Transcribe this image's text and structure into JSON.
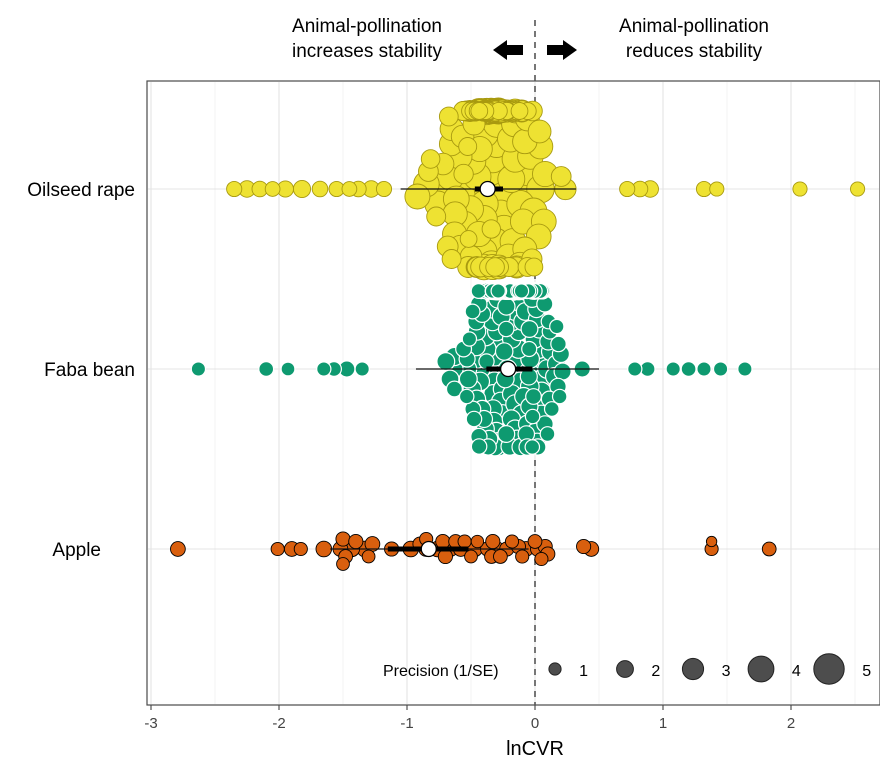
{
  "chart_data": {
    "type": "scatter",
    "subtype": "beeswarm / orchard plot",
    "xlabel": "lnCVR",
    "ylabel": "",
    "xlim": [
      -3.05,
      2.7
    ],
    "xticks": [
      -3,
      -2,
      -1,
      0,
      1,
      2
    ],
    "grid": true,
    "reference_line": {
      "x": 0,
      "style": "dashed"
    },
    "annotations": {
      "left_line1": "Animal-pollination",
      "left_line2": "increases stability",
      "right_line1": "Animal-pollination",
      "right_line2": "reduces stability"
    },
    "categories": [
      "Oilseed rape",
      "Faba bean",
      "Apple"
    ],
    "series": [
      {
        "name": "Oilseed rape",
        "color": "#eee232",
        "stroke": "#a89a10",
        "estimate": -0.37,
        "ci": [
          -0.47,
          -0.25
        ],
        "pi": [
          -1.05,
          0.32
        ],
        "points": [
          {
            "x": -2.35,
            "p": 1.5
          },
          {
            "x": -2.25,
            "p": 1.8
          },
          {
            "x": -2.15,
            "p": 1.6
          },
          {
            "x": -2.05,
            "p": 1.4
          },
          {
            "x": -1.95,
            "p": 1.7
          },
          {
            "x": -1.82,
            "p": 1.9
          },
          {
            "x": -1.68,
            "p": 1.6
          },
          {
            "x": -1.55,
            "p": 1.5
          },
          {
            "x": -1.45,
            "p": 1.4
          },
          {
            "x": -1.38,
            "p": 1.6
          },
          {
            "x": -1.28,
            "p": 1.8
          },
          {
            "x": -1.18,
            "p": 1.5
          },
          {
            "x": 0.72,
            "p": 1.5
          },
          {
            "x": 0.82,
            "p": 1.6
          },
          {
            "x": 0.9,
            "p": 1.8
          },
          {
            "x": 1.32,
            "p": 1.5
          },
          {
            "x": 1.42,
            "p": 1.3
          },
          {
            "x": 2.07,
            "p": 1.3
          },
          {
            "x": 2.52,
            "p": 1.3
          }
        ],
        "cluster": {
          "center": -0.35,
          "spread": 0.36,
          "count": 170,
          "pmin": 1.8,
          "pmax": 4.2
        }
      },
      {
        "name": "Faba bean",
        "color": "#0e9a70",
        "stroke": "#ffffff",
        "estimate": -0.21,
        "ci": [
          -0.38,
          -0.02
        ],
        "pi": [
          -0.93,
          0.5
        ],
        "points": [
          {
            "x": -2.63,
            "p": 1.3
          },
          {
            "x": -2.1,
            "p": 1.4
          },
          {
            "x": -1.93,
            "p": 1.2
          },
          {
            "x": -1.65,
            "p": 1.3
          },
          {
            "x": -1.57,
            "p": 1.4
          },
          {
            "x": -1.47,
            "p": 1.7
          },
          {
            "x": -1.35,
            "p": 1.3
          },
          {
            "x": 0.78,
            "p": 1.3
          },
          {
            "x": 0.88,
            "p": 1.4
          },
          {
            "x": 1.08,
            "p": 1.3
          },
          {
            "x": 1.2,
            "p": 1.4
          },
          {
            "x": 1.32,
            "p": 1.3
          },
          {
            "x": 1.45,
            "p": 1.3
          },
          {
            "x": 1.64,
            "p": 1.3
          }
        ],
        "cluster": {
          "center": -0.18,
          "spread": 0.33,
          "count": 230,
          "pmin": 1.3,
          "pmax": 2.3
        }
      },
      {
        "name": "Apple",
        "color": "#d95f0e",
        "stroke": "#000000",
        "estimate": -0.83,
        "ci": [
          -1.15,
          -0.52
        ],
        "pi": [
          -1.6,
          -0.05
        ],
        "points": [
          {
            "x": -2.79,
            "p": 1.4
          },
          {
            "x": -2.01,
            "p": 1.1
          },
          {
            "x": -1.9,
            "p": 1.4
          },
          {
            "x": -1.83,
            "p": 1.1
          },
          {
            "x": -1.65,
            "p": 1.6
          },
          {
            "x": -1.52,
            "p": 1.4
          },
          {
            "x": -1.5,
            "p": 1.0
          },
          {
            "x": -1.5,
            "p": 1.3
          },
          {
            "x": -1.48,
            "p": 1.2
          },
          {
            "x": -1.43,
            "p": 1.5
          },
          {
            "x": -1.4,
            "p": 1.3
          },
          {
            "x": -1.33,
            "p": 1.6
          },
          {
            "x": -1.3,
            "p": 1.0
          },
          {
            "x": -1.27,
            "p": 1.4
          },
          {
            "x": -1.12,
            "p": 1.3
          },
          {
            "x": -0.97,
            "p": 1.6
          },
          {
            "x": -0.9,
            "p": 1.2
          },
          {
            "x": -0.85,
            "p": 1.1
          },
          {
            "x": -0.85,
            "p": 1.4
          },
          {
            "x": -0.76,
            "p": 1.6
          },
          {
            "x": -0.72,
            "p": 1.3
          },
          {
            "x": -0.7,
            "p": 1.3
          },
          {
            "x": -0.66,
            "p": 1.4
          },
          {
            "x": -0.62,
            "p": 1.2
          },
          {
            "x": -0.58,
            "p": 1.4
          },
          {
            "x": -0.55,
            "p": 1.1
          },
          {
            "x": -0.5,
            "p": 1.0
          },
          {
            "x": -0.47,
            "p": 1.5
          },
          {
            "x": -0.45,
            "p": 0.9
          },
          {
            "x": -0.37,
            "p": 1.3
          },
          {
            "x": -0.34,
            "p": 1.2
          },
          {
            "x": -0.33,
            "p": 1.3
          },
          {
            "x": -0.3,
            "p": 1.4
          },
          {
            "x": -0.27,
            "p": 1.2
          },
          {
            "x": -0.22,
            "p": 1.3
          },
          {
            "x": -0.18,
            "p": 1.1
          },
          {
            "x": -0.13,
            "p": 1.3
          },
          {
            "x": -0.1,
            "p": 1.1
          },
          {
            "x": -0.07,
            "p": 1.4
          },
          {
            "x": 0.0,
            "p": 1.2
          },
          {
            "x": 0.02,
            "p": 1.3
          },
          {
            "x": 0.05,
            "p": 1.1
          },
          {
            "x": 0.08,
            "p": 1.3
          },
          {
            "x": 0.1,
            "p": 1.3
          },
          {
            "x": 0.38,
            "p": 1.3
          },
          {
            "x": 0.44,
            "p": 1.4
          },
          {
            "x": 1.38,
            "p": 1.1
          },
          {
            "x": 1.38,
            "p": 0.5
          },
          {
            "x": 1.83,
            "p": 1.2
          }
        ]
      }
    ],
    "legend": {
      "title": "Precision (1/SE)",
      "placement": "bottom-right",
      "values": [
        1,
        2,
        3,
        4,
        5
      ],
      "color": "#4d4d4d"
    }
  }
}
